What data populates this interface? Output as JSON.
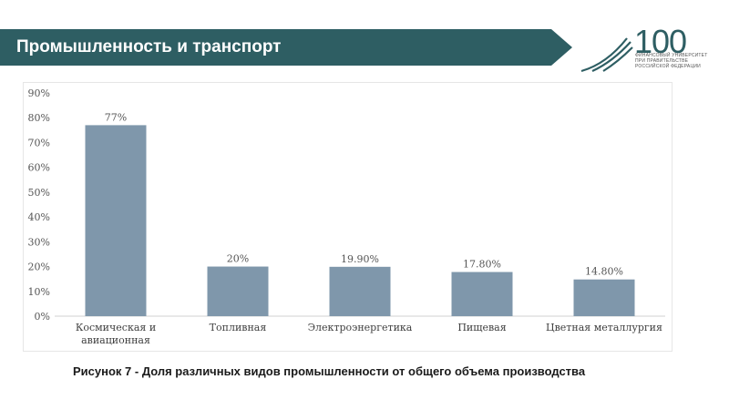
{
  "header": {
    "title": "Промышленность и транспорт",
    "color": "#2e5e63"
  },
  "logo": {
    "mark": "100",
    "lines": [
      "ФИНАНСОВЫЙ УНИВЕРСИТЕТ",
      "ПРИ ПРАВИТЕЛЬСТВЕ",
      "РОССИЙСКОЙ ФЕДЕРАЦИИ"
    ],
    "color": "#2e5e63"
  },
  "chart_data": {
    "type": "bar",
    "categories": [
      [
        "Космическая и",
        "авиационная"
      ],
      [
        "Топливная"
      ],
      [
        "Электроэнергетика"
      ],
      [
        "Пищевая"
      ],
      [
        "Цветная металлургия"
      ]
    ],
    "values": [
      77,
      20,
      19.9,
      17.8,
      14.8
    ],
    "data_labels": [
      "77%",
      "20%",
      "19.90%",
      "17.80%",
      "14.80%"
    ],
    "y_ticks": [
      "0%",
      "10%",
      "20%",
      "30%",
      "40%",
      "50%",
      "60%",
      "70%",
      "80%",
      "90%"
    ],
    "ylim": [
      0,
      90
    ],
    "grid": false,
    "bar_color": "#7f97ab"
  },
  "caption": "Рисунок 7  - Доля различных видов промышленности от общего объема производства"
}
